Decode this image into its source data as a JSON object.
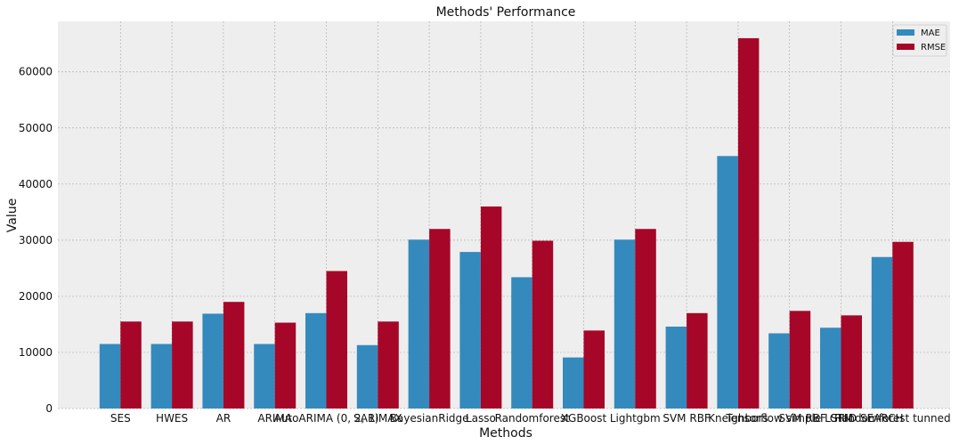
{
  "chart_data": {
    "type": "bar",
    "title": "Methods' Performance",
    "xlabel": "Methods",
    "ylabel": "Value",
    "ylim": [
      0,
      69000
    ],
    "yticks": [
      0,
      10000,
      20000,
      30000,
      40000,
      50000,
      60000
    ],
    "grid": true,
    "legend_position": "top-right",
    "categories": [
      "SES",
      "HWES",
      "AR",
      "ARIMA",
      "AutoARIMA (0, 2, 1)",
      "SARIMAX",
      "BayesianRidge",
      "Lasso",
      "Randomforest",
      "XGBoost",
      "Lightgbm",
      "SVM RBF",
      "Kneighbors",
      "Tensorflow simple LSTM",
      "SVM RBF GRID SEARCH",
      "Randomforest tunned"
    ],
    "series": [
      {
        "name": "MAE",
        "color": "#348ABD",
        "values": [
          11500,
          11500,
          16900,
          11500,
          17000,
          11300,
          30100,
          27900,
          23400,
          9100,
          30100,
          14600,
          45000,
          13400,
          14400,
          27000
        ]
      },
      {
        "name": "RMSE",
        "color": "#A60628",
        "values": [
          15500,
          15500,
          19000,
          15300,
          24500,
          15500,
          32000,
          36000,
          29900,
          13900,
          32000,
          17000,
          66000,
          17400,
          16600,
          29700
        ]
      }
    ]
  }
}
